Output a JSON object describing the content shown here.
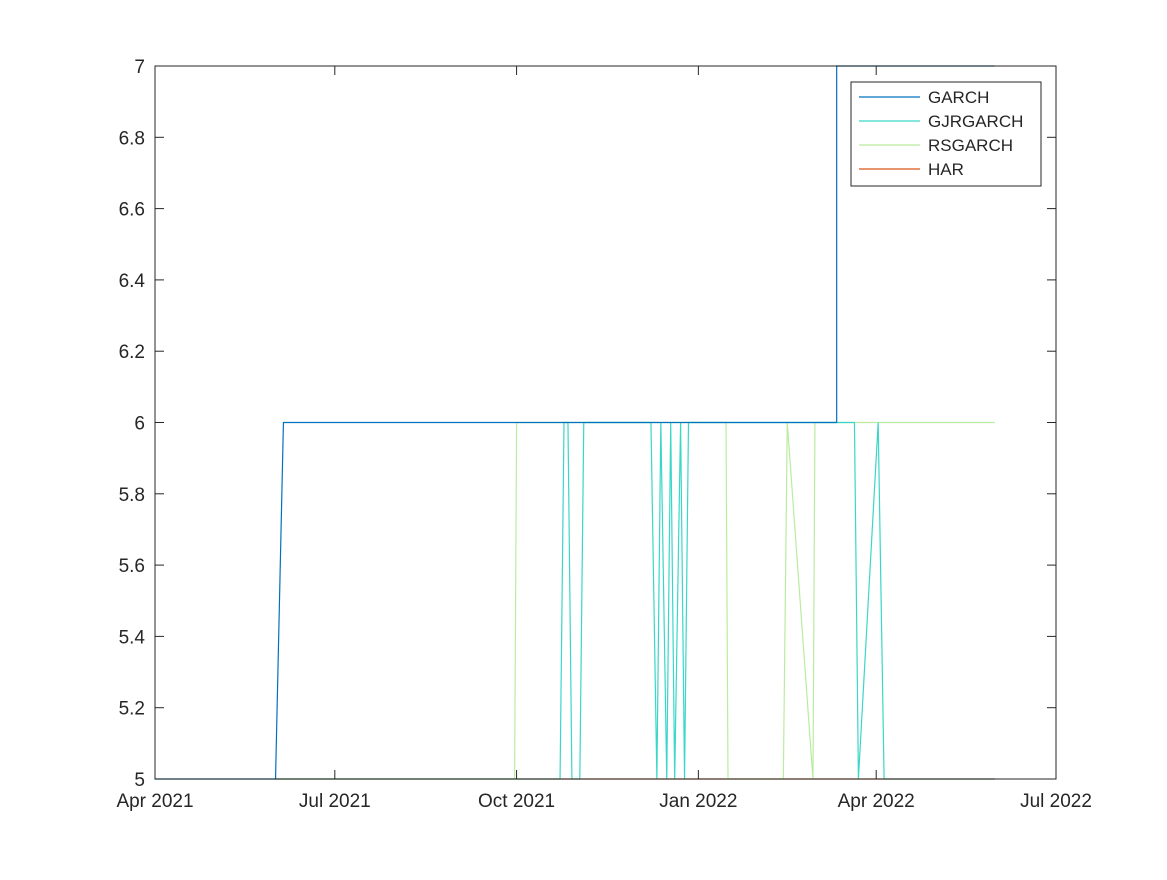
{
  "chart_data": {
    "type": "line",
    "title": "",
    "xlabel": "",
    "ylabel": "",
    "x_axis": {
      "kind": "date",
      "range": [
        "2021-04-01",
        "2022-07-01"
      ],
      "ticks": [
        {
          "date": "2021-04-01",
          "label": "Apr 2021"
        },
        {
          "date": "2021-07-01",
          "label": "Jul 2021"
        },
        {
          "date": "2021-10-01",
          "label": "Oct 2021"
        },
        {
          "date": "2022-01-01",
          "label": "Jan 2022"
        },
        {
          "date": "2022-04-01",
          "label": "Apr 2022"
        },
        {
          "date": "2022-07-01",
          "label": "Jul 2022"
        }
      ]
    },
    "y_axis": {
      "range": [
        5,
        7
      ],
      "ticks": [
        {
          "value": 5,
          "label": "5"
        },
        {
          "value": 5.2,
          "label": "5.2"
        },
        {
          "value": 5.4,
          "label": "5.4"
        },
        {
          "value": 5.6,
          "label": "5.6"
        },
        {
          "value": 5.8,
          "label": "5.8"
        },
        {
          "value": 6,
          "label": "6"
        },
        {
          "value": 6.2,
          "label": "6.2"
        },
        {
          "value": 6.4,
          "label": "6.4"
        },
        {
          "value": 6.6,
          "label": "6.6"
        },
        {
          "value": 6.8,
          "label": "6.8"
        },
        {
          "value": 7,
          "label": "7"
        }
      ]
    },
    "grid": false,
    "legend_position": "top-right",
    "series": [
      {
        "name": "GARCH",
        "color": "#0072bd",
        "x": [
          "2021-04-01",
          "2021-06-01",
          "2021-06-05",
          "2021-10-01",
          "2021-10-25",
          "2022-01-14",
          "2022-03-12",
          "2022-03-12",
          "2022-05-31"
        ],
        "y": [
          5,
          5,
          6,
          6,
          6,
          6,
          6,
          7,
          7
        ]
      },
      {
        "name": "GJRGARCH",
        "color": "#3ad6c8",
        "x": [
          "2021-06-01",
          "2021-10-01",
          "2021-10-23",
          "2021-10-25",
          "2021-10-27",
          "2021-10-29",
          "2021-11-02",
          "2021-11-04",
          "2021-11-06",
          "2021-12-08",
          "2021-12-11",
          "2021-12-13",
          "2021-12-16",
          "2021-12-18",
          "2021-12-20",
          "2021-12-23",
          "2021-12-25",
          "2021-12-27",
          "2022-01-14",
          "2022-02-17",
          "2022-03-01",
          "2022-03-03",
          "2022-03-21",
          "2022-03-23",
          "2022-04-02",
          "2022-04-05",
          "2022-05-31"
        ],
        "y": [
          5,
          5,
          5,
          6,
          6,
          5,
          5,
          6,
          6,
          6,
          5,
          6,
          5,
          6,
          5,
          6,
          5,
          6,
          6,
          6,
          6,
          6,
          6,
          5,
          6,
          5,
          5
        ]
      },
      {
        "name": "RSGARCH",
        "color": "#b9ec9f",
        "x": [
          "2021-06-01",
          "2021-09-30",
          "2021-10-01",
          "2022-01-15",
          "2022-01-16",
          "2022-02-13",
          "2022-02-15",
          "2022-02-28",
          "2022-03-01",
          "2022-05-31"
        ],
        "y": [
          5,
          5,
          6,
          6,
          5,
          5,
          6,
          5,
          6,
          6
        ]
      },
      {
        "name": "HAR",
        "color": "#d95319",
        "x": [
          "2021-06-01",
          "2022-05-31"
        ],
        "y": [
          5,
          5
        ]
      }
    ]
  }
}
